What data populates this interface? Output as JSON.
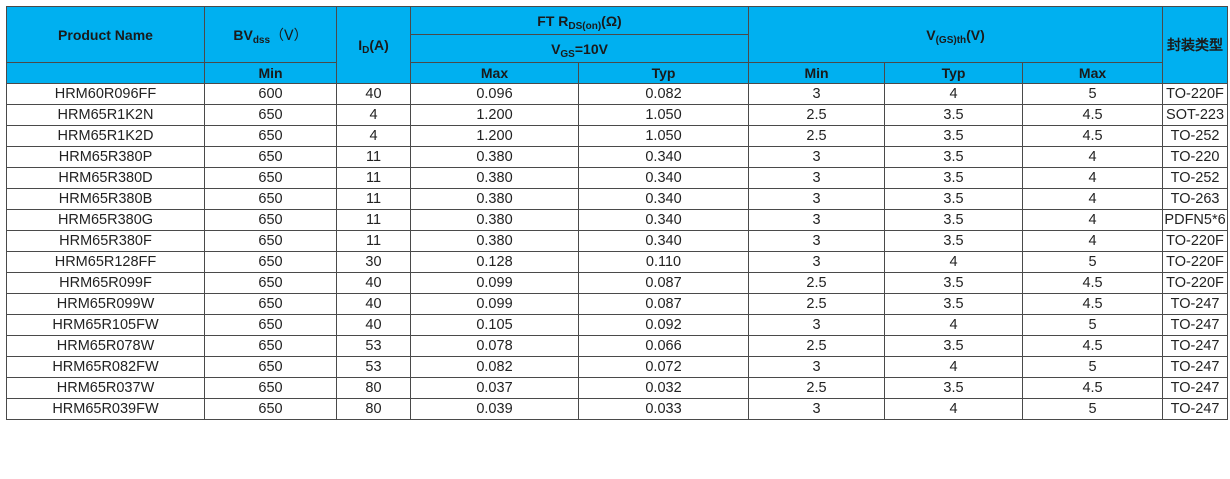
{
  "header": {
    "product_name": "Product Name",
    "bv_main": "BV",
    "bv_sub": "dss",
    "bv_unit": "（V）",
    "id_main": "I",
    "id_sub": "D",
    "id_unit": "(A)",
    "rds_prefix": "FT R",
    "rds_sub": "DS(on)",
    "rds_unit": "(Ω)",
    "vgs_main": "V",
    "vgs_sub": "GS",
    "vgs_value": "=10V",
    "vgsth_main": "V",
    "vgsth_sub": "(GS)th",
    "vgsth_unit": "(V)",
    "package": "封装类型",
    "sub_labels": {
      "bv": "Min",
      "rds_max": "Max",
      "rds_typ": "Typ",
      "vth_min": "Min",
      "vth_typ": "Typ",
      "vth_max": "Max"
    }
  },
  "rows": [
    [
      "HRM60R096FF",
      "600",
      "40",
      "0.096",
      "0.082",
      "3",
      "4",
      "5",
      "TO-220F"
    ],
    [
      "HRM65R1K2N",
      "650",
      "4",
      "1.200",
      "1.050",
      "2.5",
      "3.5",
      "4.5",
      "SOT-223"
    ],
    [
      "HRM65R1K2D",
      "650",
      "4",
      "1.200",
      "1.050",
      "2.5",
      "3.5",
      "4.5",
      "TO-252"
    ],
    [
      "HRM65R380P",
      "650",
      "11",
      "0.380",
      "0.340",
      "3",
      "3.5",
      "4",
      "TO-220"
    ],
    [
      "HRM65R380D",
      "650",
      "11",
      "0.380",
      "0.340",
      "3",
      "3.5",
      "4",
      "TO-252"
    ],
    [
      "HRM65R380B",
      "650",
      "11",
      "0.380",
      "0.340",
      "3",
      "3.5",
      "4",
      "TO-263"
    ],
    [
      "HRM65R380G",
      "650",
      "11",
      "0.380",
      "0.340",
      "3",
      "3.5",
      "4",
      "PDFN5*6"
    ],
    [
      "HRM65R380F",
      "650",
      "11",
      "0.380",
      "0.340",
      "3",
      "3.5",
      "4",
      "TO-220F"
    ],
    [
      "HRM65R128FF",
      "650",
      "30",
      "0.128",
      "0.110",
      "3",
      "4",
      "5",
      "TO-220F"
    ],
    [
      "HRM65R099F",
      "650",
      "40",
      "0.099",
      "0.087",
      "2.5",
      "3.5",
      "4.5",
      "TO-220F"
    ],
    [
      "HRM65R099W",
      "650",
      "40",
      "0.099",
      "0.087",
      "2.5",
      "3.5",
      "4.5",
      "TO-247"
    ],
    [
      "HRM65R105FW",
      "650",
      "40",
      "0.105",
      "0.092",
      "3",
      "4",
      "5",
      "TO-247"
    ],
    [
      "HRM65R078W",
      "650",
      "53",
      "0.078",
      "0.066",
      "2.5",
      "3.5",
      "4.5",
      "TO-247"
    ],
    [
      "HRM65R082FW",
      "650",
      "53",
      "0.082",
      "0.072",
      "3",
      "4",
      "5",
      "TO-247"
    ],
    [
      "HRM65R037W",
      "650",
      "80",
      "0.037",
      "0.032",
      "2.5",
      "3.5",
      "4.5",
      "TO-247"
    ],
    [
      "HRM65R039FW",
      "650",
      "80",
      "0.039",
      "0.033",
      "3",
      "4",
      "5",
      "TO-247"
    ]
  ],
  "colors": {
    "header_bg": "#00b0f0",
    "border": "#4a4a4a"
  }
}
